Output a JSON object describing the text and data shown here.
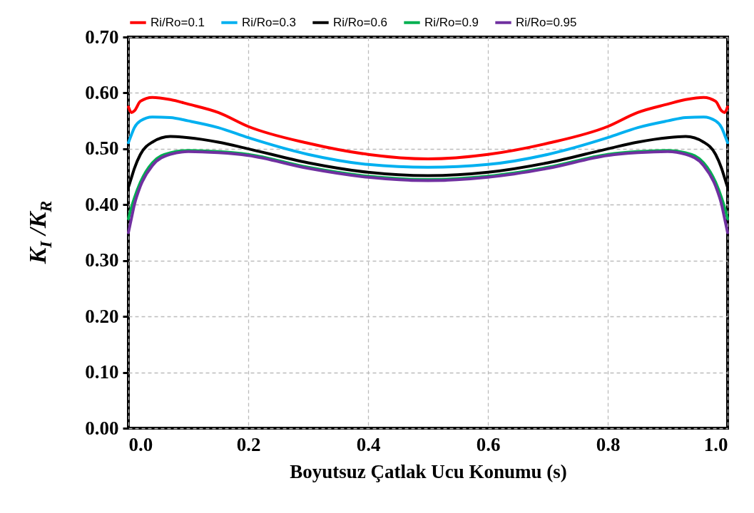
{
  "chart_data": {
    "type": "line",
    "xlabel": "Boyutsuz Çatlak Ucu Konumu (s)",
    "ylabel": "K$_{I}$ /K$_{R}$",
    "x": [
      0,
      0.005,
      0.01,
      0.02,
      0.04,
      0.07,
      0.1,
      0.15,
      0.2,
      0.3,
      0.4,
      0.5,
      0.6,
      0.7,
      0.8,
      0.85,
      0.9,
      0.93,
      0.96,
      0.98,
      0.99,
      0.995,
      1
    ],
    "series": [
      {
        "name": "Ri/Ro=0.1",
        "color": "#ff0000",
        "values": [
          0.575,
          0.565,
          0.568,
          0.585,
          0.592,
          0.588,
          0.58,
          0.565,
          0.54,
          0.51,
          0.49,
          0.482,
          0.49,
          0.51,
          0.54,
          0.565,
          0.58,
          0.588,
          0.592,
          0.585,
          0.568,
          0.565,
          0.575
        ]
      },
      {
        "name": "Ri/Ro=0.3",
        "color": "#00b0f0",
        "values": [
          0.511,
          0.525,
          0.538,
          0.55,
          0.557,
          0.556,
          0.55,
          0.538,
          0.52,
          0.49,
          0.472,
          0.467,
          0.472,
          0.49,
          0.52,
          0.538,
          0.55,
          0.556,
          0.557,
          0.55,
          0.538,
          0.525,
          0.511
        ]
      },
      {
        "name": "Ri/Ro=0.6",
        "color": "#000000",
        "values": [
          0.431,
          0.448,
          0.465,
          0.49,
          0.512,
          0.522,
          0.52,
          0.512,
          0.5,
          0.475,
          0.458,
          0.452,
          0.458,
          0.475,
          0.5,
          0.512,
          0.52,
          0.522,
          0.512,
          0.49,
          0.465,
          0.448,
          0.431
        ]
      },
      {
        "name": "Ri/Ro=0.9",
        "color": "#00b050",
        "values": [
          0.375,
          0.395,
          0.412,
          0.44,
          0.475,
          0.493,
          0.497,
          0.495,
          0.49,
          0.467,
          0.451,
          0.445,
          0.451,
          0.467,
          0.49,
          0.495,
          0.497,
          0.493,
          0.475,
          0.44,
          0.412,
          0.395,
          0.375
        ]
      },
      {
        "name": "Ri/Ro=0.95",
        "color": "#7030a0",
        "values": [
          0.35,
          0.375,
          0.4,
          0.433,
          0.47,
          0.49,
          0.495,
          0.493,
          0.488,
          0.465,
          0.449,
          0.443,
          0.449,
          0.465,
          0.488,
          0.493,
          0.495,
          0.49,
          0.47,
          0.433,
          0.4,
          0.375,
          0.35
        ]
      }
    ],
    "xlim": [
      0,
      1
    ],
    "xticks": [
      {
        "value": 0,
        "label": "0.0"
      },
      0.2,
      0.4,
      0.6,
      0.8,
      {
        "value": 1,
        "label": "1.0"
      }
    ],
    "ylim": [
      0,
      0.7
    ],
    "yticks": [
      {
        "value": 0,
        "label": "0.00"
      },
      {
        "value": 0.1,
        "label": "0.10"
      },
      {
        "value": 0.2,
        "label": "0.20"
      },
      {
        "value": 0.3,
        "label": "0.30"
      },
      {
        "value": 0.4,
        "label": "0.40"
      },
      {
        "value": 0.5,
        "label": "0.50"
      },
      {
        "value": 0.6,
        "label": "0.60"
      },
      {
        "value": 0.7,
        "label": "0.70"
      }
    ],
    "grid": true,
    "legend": "top",
    "marker": "none",
    "line_style": "solid"
  }
}
